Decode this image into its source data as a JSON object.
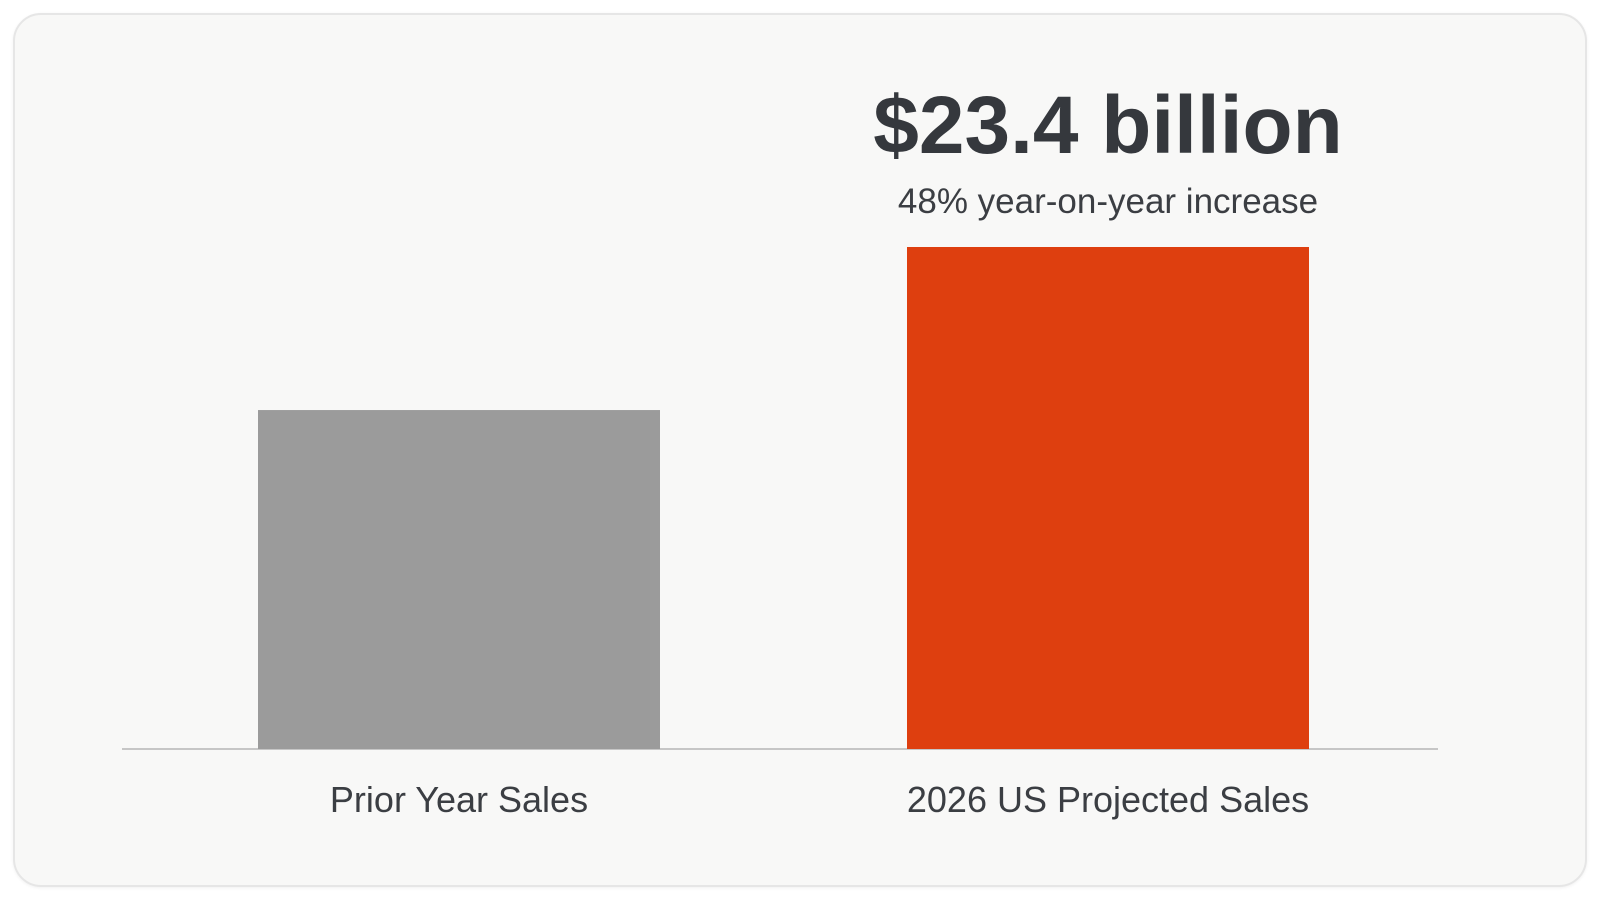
{
  "chart_data": {
    "type": "bar",
    "categories": [
      "Prior Year Sales",
      "2026 US Projected Sales"
    ],
    "values": [
      15.8,
      23.4
    ],
    "value_unit": "$ billion",
    "ylim": [
      0,
      23.4
    ],
    "grid": false,
    "legend": "none",
    "bar_colors": [
      "#9b9b9b",
      "#de3f0f"
    ],
    "baseline_color": "#b5b5b5",
    "annotation": {
      "category": "2026 US Projected Sales",
      "value_label": "$23.4 billion",
      "sub_label": "48% year-on-year increase"
    }
  }
}
